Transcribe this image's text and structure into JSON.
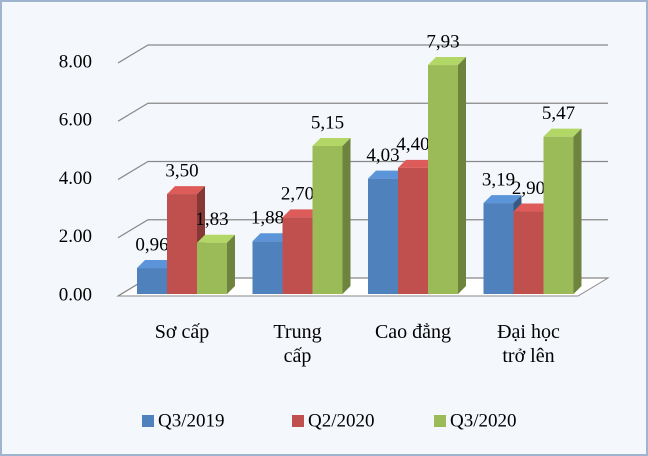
{
  "chart_data": {
    "type": "bar3d",
    "categories": [
      "Sơ cấp",
      "Trung cấp",
      "Cao đẳng",
      "Đại học trở lên"
    ],
    "series": [
      {
        "name": "Q3/2019",
        "color": "#4f81bd",
        "values": [
          0.96,
          1.88,
          4.03,
          3.19
        ],
        "value_labels": [
          "0,96",
          "1,88",
          "4,03",
          "3,19"
        ]
      },
      {
        "name": "Q2/2020",
        "color": "#c0504d",
        "values": [
          3.5,
          2.7,
          4.4,
          2.9
        ],
        "value_labels": [
          "3,50",
          "2,70",
          "4,40",
          "2,90"
        ]
      },
      {
        "name": "Q3/2020",
        "color": "#9bbb59",
        "values": [
          1.83,
          5.15,
          7.93,
          5.47
        ],
        "value_labels": [
          "1,83",
          "5,15",
          "7,93",
          "5,47"
        ]
      }
    ],
    "ylim": [
      0,
      8
    ],
    "yticks": [
      {
        "value": 0,
        "label": "0.00"
      },
      {
        "value": 2,
        "label": "2.00"
      },
      {
        "value": 4,
        "label": "4.00"
      },
      {
        "value": 6,
        "label": "6.00"
      },
      {
        "value": 8,
        "label": "8.00"
      }
    ],
    "grid": true,
    "legend": "bottom"
  }
}
